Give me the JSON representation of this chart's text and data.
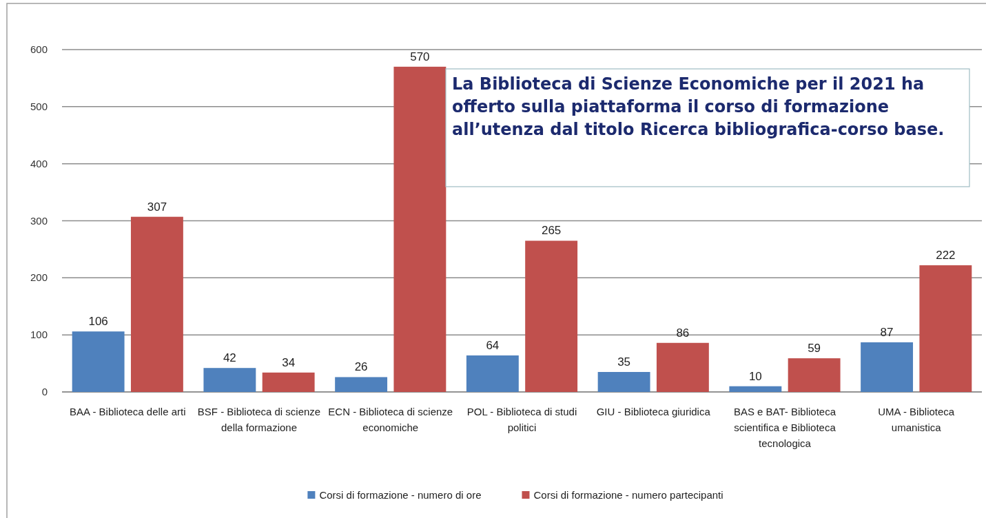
{
  "chart_data": {
    "type": "bar",
    "categories": [
      "BAA - Biblioteca delle arti",
      "BSF - Biblioteca di scienze della formazione",
      "ECN - Biblioteca di scienze economiche",
      "POL - Biblioteca di studi politici",
      "GIU - Biblioteca giuridica",
      "BAS e BAT- Biblioteca scientifica e Biblioteca tecnologica",
      "UMA - Biblioteca umanistica"
    ],
    "series": [
      {
        "name": "Corsi di formazione - numero di ore",
        "color": "#4f81bd",
        "values": [
          106,
          42,
          26,
          64,
          35,
          10,
          87
        ]
      },
      {
        "name": "Corsi di formazione - numero partecipanti",
        "color": "#c0504d",
        "values": [
          307,
          34,
          570,
          265,
          86,
          59,
          222
        ]
      }
    ],
    "ylim": [
      0,
      600
    ],
    "yticks": [
      0,
      100,
      200,
      300,
      400,
      500,
      600
    ],
    "grid": "y",
    "legend": "bottom",
    "data_labels": true,
    "annotations": [
      "La Biblioteca di Scienze Economiche per il 2021 ha offerto sulla piattaforma il corso di formazione all’utenza dal titolo Ricerca bibliografica-corso base."
    ]
  }
}
